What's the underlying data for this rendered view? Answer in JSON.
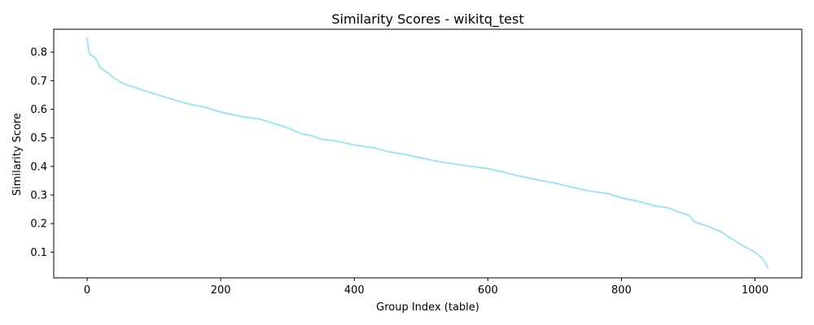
{
  "chart_data": {
    "type": "line",
    "title": "Similarity Scores - wikitq_test",
    "xlabel": "Group Index (table)",
    "ylabel": "Similarity Score",
    "xlim": [
      -50,
      1070
    ],
    "ylim": [
      0.01,
      0.88
    ],
    "xticks": [
      0,
      200,
      400,
      600,
      800,
      1000
    ],
    "yticks": [
      0.1,
      0.2,
      0.3,
      0.4,
      0.5,
      0.6,
      0.7,
      0.8
    ],
    "grid": false,
    "legend": "none",
    "series": [
      {
        "color": "#a6e1ea",
        "x": [
          0,
          2,
          5,
          10,
          15,
          20,
          30,
          40,
          50,
          60,
          80,
          100,
          120,
          150,
          180,
          200,
          230,
          260,
          280,
          300,
          320,
          340,
          350,
          370,
          400,
          430,
          450,
          480,
          500,
          530,
          560,
          600,
          620,
          650,
          680,
          700,
          730,
          750,
          780,
          800,
          830,
          850,
          870,
          880,
          900,
          910,
          930,
          950,
          970,
          980,
          1000,
          1010,
          1015,
          1019
        ],
        "y": [
          0.85,
          0.81,
          0.79,
          0.785,
          0.77,
          0.745,
          0.73,
          0.71,
          0.695,
          0.685,
          0.67,
          0.655,
          0.64,
          0.62,
          0.605,
          0.59,
          0.575,
          0.565,
          0.55,
          0.535,
          0.515,
          0.505,
          0.495,
          0.49,
          0.475,
          0.465,
          0.452,
          0.44,
          0.43,
          0.415,
          0.405,
          0.392,
          0.382,
          0.365,
          0.35,
          0.342,
          0.325,
          0.315,
          0.305,
          0.29,
          0.275,
          0.262,
          0.255,
          0.245,
          0.23,
          0.205,
          0.19,
          0.17,
          0.14,
          0.125,
          0.1,
          0.08,
          0.065,
          0.045
        ]
      }
    ]
  }
}
